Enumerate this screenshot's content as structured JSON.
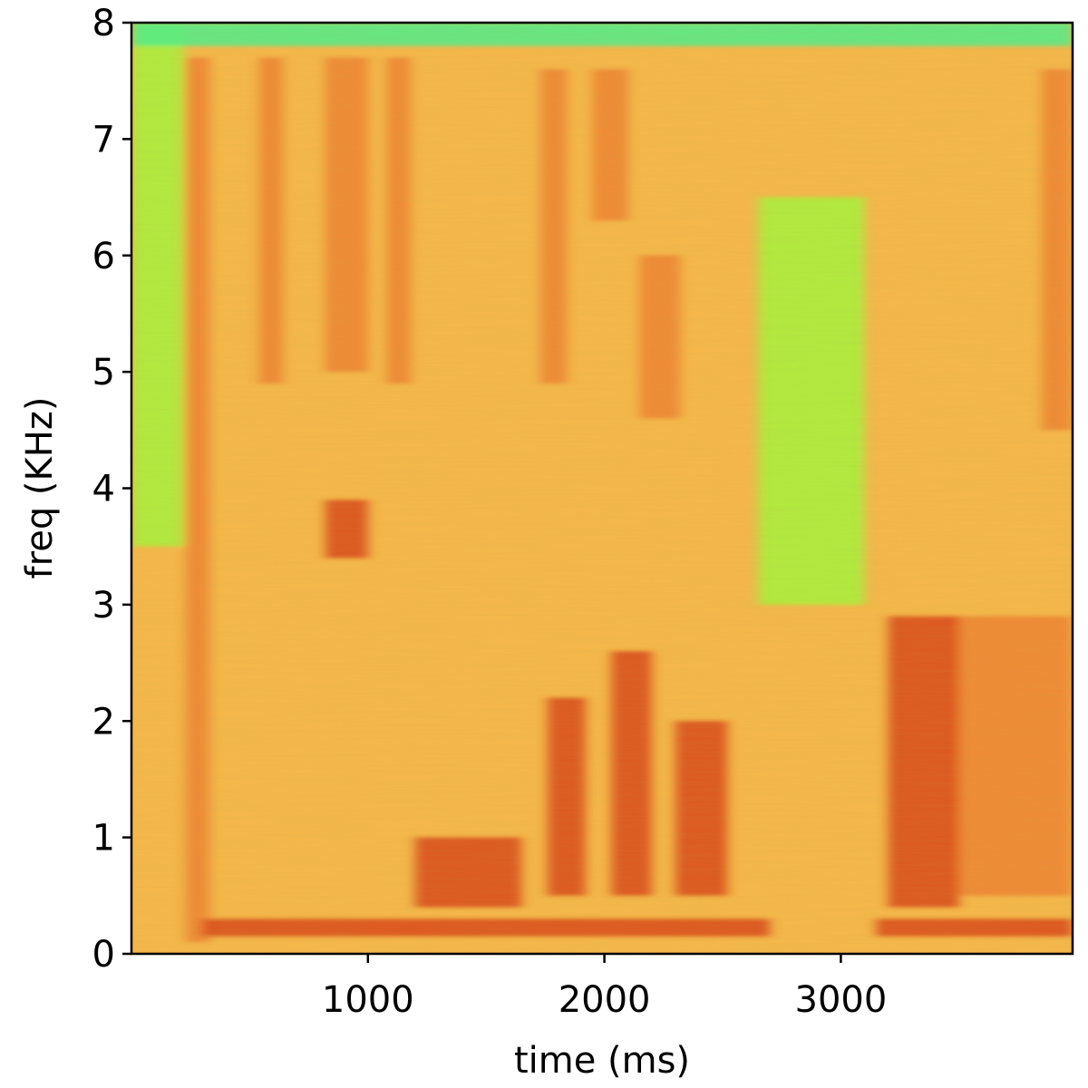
{
  "chart_data": {
    "type": "heatmap",
    "title": "",
    "xlabel": "time (ms)",
    "ylabel": "freq (KHz)",
    "xlim": [
      0,
      3980
    ],
    "ylim": [
      0,
      8
    ],
    "xticks": [
      {
        "value": 1000,
        "label": "1000"
      },
      {
        "value": 2000,
        "label": "2000"
      },
      {
        "value": 3000,
        "label": "3000"
      }
    ],
    "yticks": [
      {
        "value": 0,
        "label": "0"
      },
      {
        "value": 1,
        "label": "1"
      },
      {
        "value": 2,
        "label": "2"
      },
      {
        "value": 3,
        "label": "3"
      },
      {
        "value": 4,
        "label": "4"
      },
      {
        "value": 5,
        "label": "5"
      },
      {
        "value": 6,
        "label": "6"
      },
      {
        "value": 7,
        "label": "7"
      },
      {
        "value": 8,
        "label": "8"
      }
    ],
    "colormap": [
      "#23e0b4",
      "#4df08c",
      "#a6f53c",
      "#d8e83a",
      "#f6b84a",
      "#ef8232",
      "#d9481a",
      "#b02a0a"
    ],
    "background_level": 0.5,
    "energy_regions": [
      {
        "t": [
          230,
          330
        ],
        "f": [
          0.1,
          7.7
        ],
        "level": 0.78
      },
      {
        "t": [
          540,
          640
        ],
        "f": [
          4.9,
          7.7
        ],
        "level": 0.74
      },
      {
        "t": [
          820,
          1000
        ],
        "f": [
          5.0,
          7.7
        ],
        "level": 0.74
      },
      {
        "t": [
          820,
          1000
        ],
        "f": [
          3.4,
          3.9
        ],
        "level": 0.82
      },
      {
        "t": [
          1080,
          1180
        ],
        "f": [
          4.9,
          7.7
        ],
        "level": 0.74
      },
      {
        "t": [
          1730,
          1840
        ],
        "f": [
          4.9,
          7.6
        ],
        "level": 0.72
      },
      {
        "t": [
          1950,
          2100
        ],
        "f": [
          6.3,
          7.6
        ],
        "level": 0.74
      },
      {
        "t": [
          2150,
          2320
        ],
        "f": [
          4.6,
          6.0
        ],
        "level": 0.78
      },
      {
        "t": [
          1760,
          1920
        ],
        "f": [
          0.5,
          2.2
        ],
        "level": 0.84
      },
      {
        "t": [
          2030,
          2200
        ],
        "f": [
          0.5,
          2.6
        ],
        "level": 0.86
      },
      {
        "t": [
          2300,
          2520
        ],
        "f": [
          0.5,
          2.0
        ],
        "level": 0.84
      },
      {
        "t": [
          3200,
          3500
        ],
        "f": [
          0.4,
          2.9
        ],
        "level": 0.86
      },
      {
        "t": [
          3500,
          3980
        ],
        "f": [
          0.5,
          2.9
        ],
        "level": 0.72
      },
      {
        "t": [
          3850,
          3980
        ],
        "f": [
          4.5,
          7.6
        ],
        "level": 0.76
      },
      {
        "t": [
          1200,
          1650
        ],
        "f": [
          0.4,
          1.0
        ],
        "level": 0.8
      },
      {
        "t": [
          300,
          2700
        ],
        "f": [
          0.15,
          0.3
        ],
        "level": 0.92
      },
      {
        "t": [
          3150,
          3980
        ],
        "f": [
          0.15,
          0.3
        ],
        "level": 0.9
      },
      {
        "t": [
          2650,
          3100
        ],
        "f": [
          3.0,
          6.5
        ],
        "level": 0.22
      },
      {
        "t": [
          0,
          220
        ],
        "f": [
          3.5,
          8.0
        ],
        "level": 0.3
      },
      {
        "t": [
          0,
          3980
        ],
        "f": [
          7.8,
          8.0
        ],
        "level": 0.2
      }
    ]
  }
}
